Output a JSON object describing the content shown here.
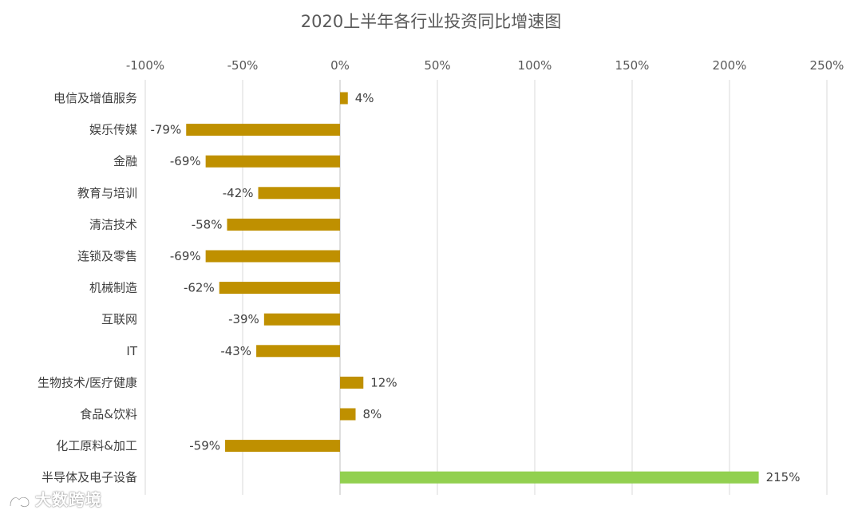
{
  "chart_data": {
    "type": "bar",
    "orientation": "horizontal",
    "title": "2020上半年各行业投资同比增速图",
    "categories": [
      "电信及增值服务",
      "娱乐传媒",
      "金融",
      "教育与培训",
      "清洁技术",
      "连锁及零售",
      "机械制造",
      "互联网",
      "IT",
      "生物技术/医疗健康",
      "食品&饮料",
      "化工原料&加工",
      "半导体及电子设备"
    ],
    "values": [
      4,
      -79,
      -69,
      -42,
      -58,
      -69,
      -62,
      -39,
      -43,
      12,
      8,
      -59,
      215
    ],
    "data_labels": [
      "4%",
      "-79%",
      "-69%",
      "-42%",
      "-58%",
      "-69%",
      "-62%",
      "-39%",
      "-43%",
      "12%",
      "8%",
      "-59%",
      "215%"
    ],
    "xlim": [
      -100,
      250
    ],
    "x_ticks": [
      -100,
      -50,
      0,
      50,
      100,
      150,
      200,
      250
    ],
    "x_tick_labels": [
      "-100%",
      "-50%",
      "0%",
      "50%",
      "100%",
      "150%",
      "200%",
      "250%"
    ],
    "x_axis_position": "top",
    "grid": true,
    "colors": {
      "default_bar": "#BF9000",
      "highlight_bar": "#92D050",
      "highlight_index": 12
    }
  },
  "watermark": {
    "text": "大数跨境"
  }
}
